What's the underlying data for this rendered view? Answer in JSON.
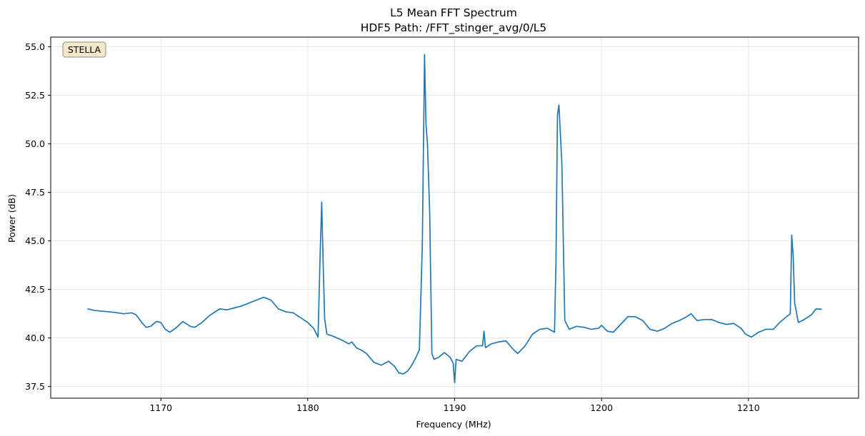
{
  "chart_data": {
    "type": "line",
    "title": "L5 Mean FFT Spectrum",
    "subtitle": "HDF5 Path: /FFT_stinger_avg/0/L5",
    "xlabel": "Frequency (MHz)",
    "ylabel": "Power (dB)",
    "xlim": [
      1162.5,
      1217.5
    ],
    "ylim": [
      36.9,
      55.5
    ],
    "xticks": [
      1170,
      1180,
      1190,
      1200,
      1210
    ],
    "xtick_labels": [
      "1170",
      "1180",
      "1190",
      "1200",
      "1210"
    ],
    "yticks": [
      37.5,
      40.0,
      42.5,
      45.0,
      47.5,
      50.0,
      52.5,
      55.0
    ],
    "ytick_labels": [
      "37.5",
      "40.0",
      "42.5",
      "45.0",
      "47.5",
      "50.0",
      "52.5",
      "55.0"
    ],
    "grid": true,
    "annotation": "STELLA",
    "series": [
      {
        "name": "L5 mean spectrum",
        "color": "#1f77b4",
        "points": [
          [
            1165.0,
            41.5
          ],
          [
            1165.5,
            41.42
          ],
          [
            1166.0,
            41.38
          ],
          [
            1166.5,
            41.35
          ],
          [
            1167.0,
            41.3
          ],
          [
            1167.5,
            41.25
          ],
          [
            1168.0,
            41.3
          ],
          [
            1168.3,
            41.2
          ],
          [
            1168.7,
            40.8
          ],
          [
            1169.0,
            40.55
          ],
          [
            1169.3,
            40.6
          ],
          [
            1169.7,
            40.85
          ],
          [
            1170.0,
            40.8
          ],
          [
            1170.3,
            40.45
          ],
          [
            1170.6,
            40.3
          ],
          [
            1171.0,
            40.5
          ],
          [
            1171.5,
            40.85
          ],
          [
            1172.0,
            40.6
          ],
          [
            1172.3,
            40.55
          ],
          [
            1172.8,
            40.8
          ],
          [
            1173.3,
            41.15
          ],
          [
            1174.0,
            41.5
          ],
          [
            1174.5,
            41.45
          ],
          [
            1175.0,
            41.55
          ],
          [
            1175.5,
            41.65
          ],
          [
            1176.0,
            41.8
          ],
          [
            1176.5,
            41.95
          ],
          [
            1177.0,
            42.1
          ],
          [
            1177.5,
            41.95
          ],
          [
            1178.0,
            41.5
          ],
          [
            1178.5,
            41.35
          ],
          [
            1179.0,
            41.3
          ],
          [
            1179.5,
            41.05
          ],
          [
            1180.0,
            40.8
          ],
          [
            1180.4,
            40.5
          ],
          [
            1180.7,
            40.05
          ],
          [
            1180.85,
            44.5
          ],
          [
            1180.95,
            47.0
          ],
          [
            1181.05,
            43.8
          ],
          [
            1181.15,
            41.0
          ],
          [
            1181.3,
            40.2
          ],
          [
            1181.7,
            40.1
          ],
          [
            1182.3,
            39.9
          ],
          [
            1182.8,
            39.7
          ],
          [
            1183.0,
            39.8
          ],
          [
            1183.3,
            39.5
          ],
          [
            1183.7,
            39.35
          ],
          [
            1184.0,
            39.2
          ],
          [
            1184.5,
            38.75
          ],
          [
            1185.0,
            38.6
          ],
          [
            1185.5,
            38.8
          ],
          [
            1185.9,
            38.55
          ],
          [
            1186.2,
            38.2
          ],
          [
            1186.5,
            38.15
          ],
          [
            1186.8,
            38.3
          ],
          [
            1187.0,
            38.5
          ],
          [
            1187.3,
            38.9
          ],
          [
            1187.6,
            39.4
          ],
          [
            1187.8,
            44.8
          ],
          [
            1187.95,
            54.6
          ],
          [
            1188.05,
            51.0
          ],
          [
            1188.15,
            50.0
          ],
          [
            1188.3,
            46.5
          ],
          [
            1188.45,
            39.2
          ],
          [
            1188.6,
            38.9
          ],
          [
            1188.9,
            39.0
          ],
          [
            1189.3,
            39.25
          ],
          [
            1189.7,
            39.0
          ],
          [
            1189.9,
            38.7
          ],
          [
            1190.0,
            37.7
          ],
          [
            1190.1,
            38.9
          ],
          [
            1190.5,
            38.8
          ],
          [
            1191.0,
            39.3
          ],
          [
            1191.5,
            39.6
          ],
          [
            1191.9,
            39.6
          ],
          [
            1192.0,
            40.35
          ],
          [
            1192.1,
            39.5
          ],
          [
            1192.5,
            39.7
          ],
          [
            1193.0,
            39.8
          ],
          [
            1193.5,
            39.85
          ],
          [
            1194.0,
            39.4
          ],
          [
            1194.3,
            39.2
          ],
          [
            1194.8,
            39.6
          ],
          [
            1195.3,
            40.2
          ],
          [
            1195.8,
            40.45
          ],
          [
            1196.3,
            40.5
          ],
          [
            1196.8,
            40.3
          ],
          [
            1196.9,
            44.0
          ],
          [
            1197.0,
            51.5
          ],
          [
            1197.1,
            52.0
          ],
          [
            1197.2,
            50.5
          ],
          [
            1197.3,
            49.0
          ],
          [
            1197.5,
            40.9
          ],
          [
            1197.8,
            40.45
          ],
          [
            1198.3,
            40.6
          ],
          [
            1198.8,
            40.55
          ],
          [
            1199.3,
            40.45
          ],
          [
            1199.8,
            40.5
          ],
          [
            1200.0,
            40.65
          ],
          [
            1200.4,
            40.35
          ],
          [
            1200.8,
            40.3
          ],
          [
            1201.3,
            40.7
          ],
          [
            1201.8,
            41.1
          ],
          [
            1202.3,
            41.1
          ],
          [
            1202.8,
            40.9
          ],
          [
            1203.3,
            40.45
          ],
          [
            1203.8,
            40.35
          ],
          [
            1204.3,
            40.5
          ],
          [
            1204.8,
            40.75
          ],
          [
            1205.3,
            40.9
          ],
          [
            1205.8,
            41.1
          ],
          [
            1206.1,
            41.25
          ],
          [
            1206.5,
            40.9
          ],
          [
            1207.0,
            40.95
          ],
          [
            1207.5,
            40.95
          ],
          [
            1208.0,
            40.8
          ],
          [
            1208.5,
            40.7
          ],
          [
            1209.0,
            40.75
          ],
          [
            1209.5,
            40.5
          ],
          [
            1209.8,
            40.2
          ],
          [
            1210.2,
            40.05
          ],
          [
            1210.7,
            40.3
          ],
          [
            1211.2,
            40.45
          ],
          [
            1211.7,
            40.45
          ],
          [
            1212.2,
            40.85
          ],
          [
            1212.6,
            41.1
          ],
          [
            1212.85,
            41.25
          ],
          [
            1212.95,
            45.3
          ],
          [
            1213.05,
            44.2
          ],
          [
            1213.15,
            41.8
          ],
          [
            1213.4,
            40.8
          ],
          [
            1213.8,
            40.95
          ],
          [
            1214.3,
            41.2
          ],
          [
            1214.6,
            41.5
          ],
          [
            1215.0,
            41.48
          ]
        ]
      }
    ]
  }
}
